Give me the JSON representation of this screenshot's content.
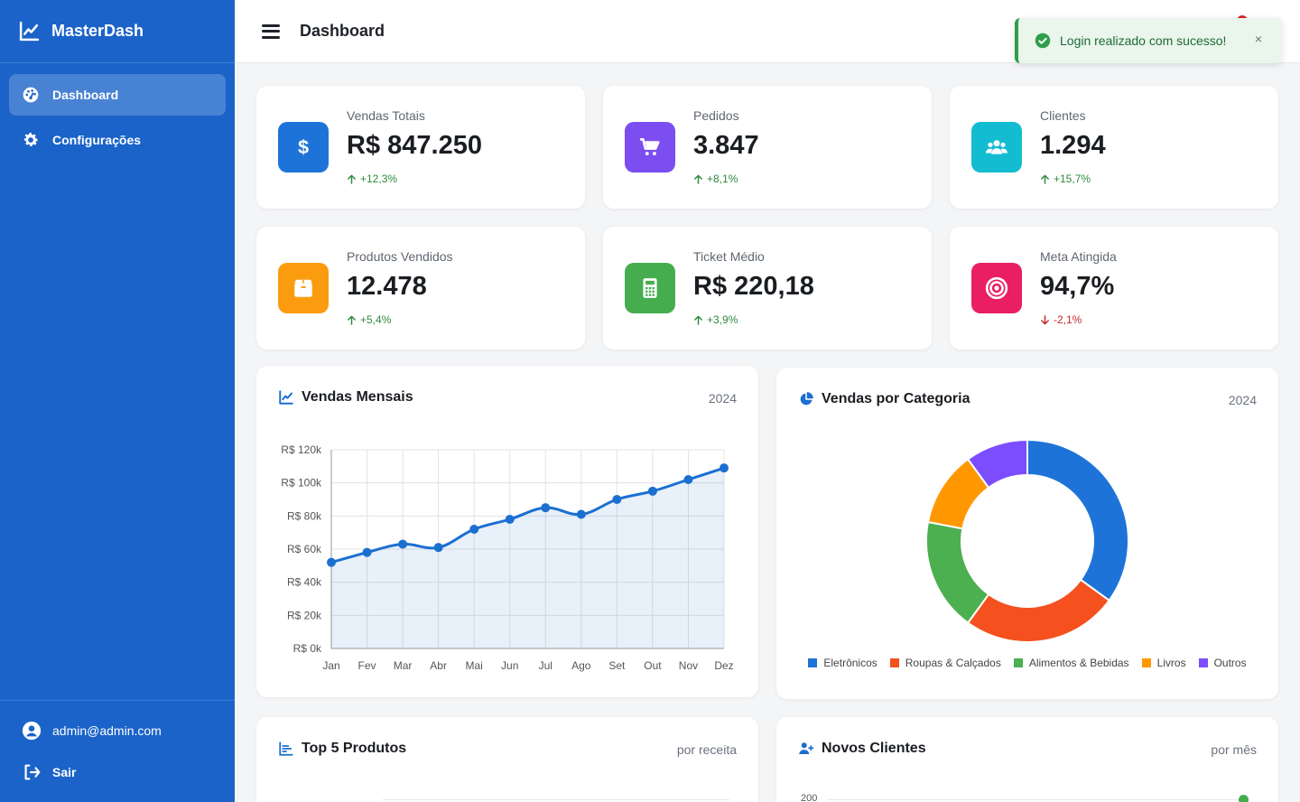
{
  "brand": {
    "name": "MasterDash"
  },
  "sidebar": {
    "items": [
      {
        "label": "Dashboard",
        "icon": "gauge-icon",
        "active": true
      },
      {
        "label": "Configurações",
        "icon": "gear-icon",
        "active": false
      }
    ],
    "user_email": "admin@admin.com",
    "logout_label": "Sair"
  },
  "header": {
    "title": "Dashboard"
  },
  "toast": {
    "message": "Login realizado com sucesso!",
    "close": "×"
  },
  "stats": [
    {
      "label": "Vendas Totais",
      "value": "R$ 847.250",
      "trend": "+12,3%",
      "direction": "up",
      "color": "#1e73d8",
      "icon": "dollar-icon"
    },
    {
      "label": "Pedidos",
      "value": "3.847",
      "trend": "+8,1%",
      "direction": "up",
      "color": "#7c4df0",
      "icon": "cart-icon"
    },
    {
      "label": "Clientes",
      "value": "1.294",
      "trend": "+15,7%",
      "direction": "up",
      "color": "#14bcd1",
      "icon": "users-icon"
    },
    {
      "label": "Produtos Vendidos",
      "value": "12.478",
      "trend": "+5,4%",
      "direction": "up",
      "color": "#fb9c10",
      "icon": "box-icon"
    },
    {
      "label": "Ticket Médio",
      "value": "R$ 220,18",
      "trend": "+3,9%",
      "direction": "up",
      "color": "#46ad4f",
      "icon": "calculator-icon"
    },
    {
      "label": "Meta Atingida",
      "value": "94,7%",
      "trend": "-2,1%",
      "direction": "down",
      "color": "#e91e63",
      "icon": "target-icon"
    }
  ],
  "panels": {
    "monthly": {
      "title": "Vendas Mensais",
      "meta": "2024"
    },
    "category": {
      "title": "Vendas por Categoria",
      "meta": "2024"
    },
    "top": {
      "title": "Top 5 Produtos",
      "meta": "por receita"
    },
    "clients": {
      "title": "Novos Clientes",
      "meta": "por mês",
      "first_tick": "200"
    }
  },
  "chart_data": [
    {
      "type": "area",
      "title": "Vendas Mensais",
      "categories": [
        "Jan",
        "Fev",
        "Mar",
        "Abr",
        "Mai",
        "Jun",
        "Jul",
        "Ago",
        "Set",
        "Out",
        "Nov",
        "Dez"
      ],
      "values": [
        52000,
        58000,
        63000,
        61000,
        72000,
        78000,
        85000,
        81000,
        90000,
        95000,
        102000,
        109000
      ],
      "yticks": [
        "R$ 0k",
        "R$ 20k",
        "R$ 40k",
        "R$ 60k",
        "R$ 80k",
        "R$ 100k",
        "R$ 120k"
      ],
      "ylim": [
        0,
        120000
      ],
      "color": "#1b6fd1",
      "grid": true
    },
    {
      "type": "pie",
      "title": "Vendas por Categoria",
      "categories": [
        "Eletrônicos",
        "Roupas & Calçados",
        "Alimentos & Bebidas",
        "Livros",
        "Outros"
      ],
      "values": [
        35,
        25,
        18,
        12,
        10
      ],
      "colors": [
        "#1e73d8",
        "#f4511e",
        "#4caf50",
        "#ff9800",
        "#7c4dff"
      ],
      "legend": "bottom"
    }
  ]
}
